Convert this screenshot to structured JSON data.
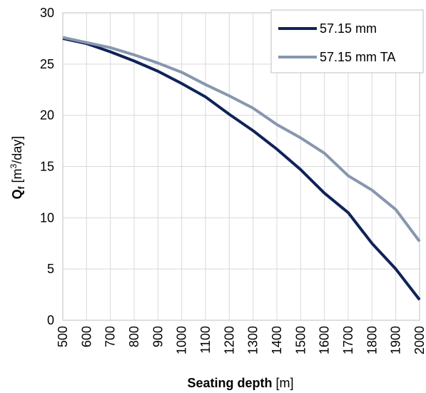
{
  "chart_data": {
    "type": "line",
    "x": [
      500,
      600,
      700,
      800,
      900,
      1000,
      1100,
      1200,
      1300,
      1400,
      1500,
      1600,
      1700,
      1800,
      1900,
      2000
    ],
    "series": [
      {
        "name": "57.15 mm",
        "color": "#0f2358",
        "values": [
          27.5,
          27.0,
          26.2,
          25.3,
          24.3,
          23.1,
          21.8,
          20.1,
          18.5,
          16.7,
          14.7,
          12.4,
          10.5,
          7.5,
          5.0,
          2.0
        ]
      },
      {
        "name": "57.15 mm TA",
        "color": "#8896ae",
        "values": [
          27.6,
          27.1,
          26.6,
          25.9,
          25.1,
          24.2,
          23.0,
          21.9,
          20.7,
          19.1,
          17.8,
          16.3,
          14.1,
          12.7,
          10.8,
          7.7
        ]
      }
    ],
    "xlim": [
      500,
      2000
    ],
    "ylim": [
      0,
      30
    ],
    "xticks": [
      "500",
      "600",
      "700",
      "800",
      "900",
      "1000",
      "1100",
      "1200",
      "1300",
      "1400",
      "1500",
      "1600",
      "1700",
      "1800",
      "1900",
      "2000"
    ],
    "yticks": [
      "0",
      "5",
      "10",
      "15",
      "20",
      "25",
      "30"
    ],
    "xlabel": {
      "bold": "Seating depth",
      "rest": " [m]"
    },
    "ylabel": {
      "bold": "Q",
      "sub": "f",
      "rest_pre": " [m",
      "sup": "3",
      "rest_post": "/day]"
    },
    "grid": true,
    "legend_position": "top-right"
  }
}
